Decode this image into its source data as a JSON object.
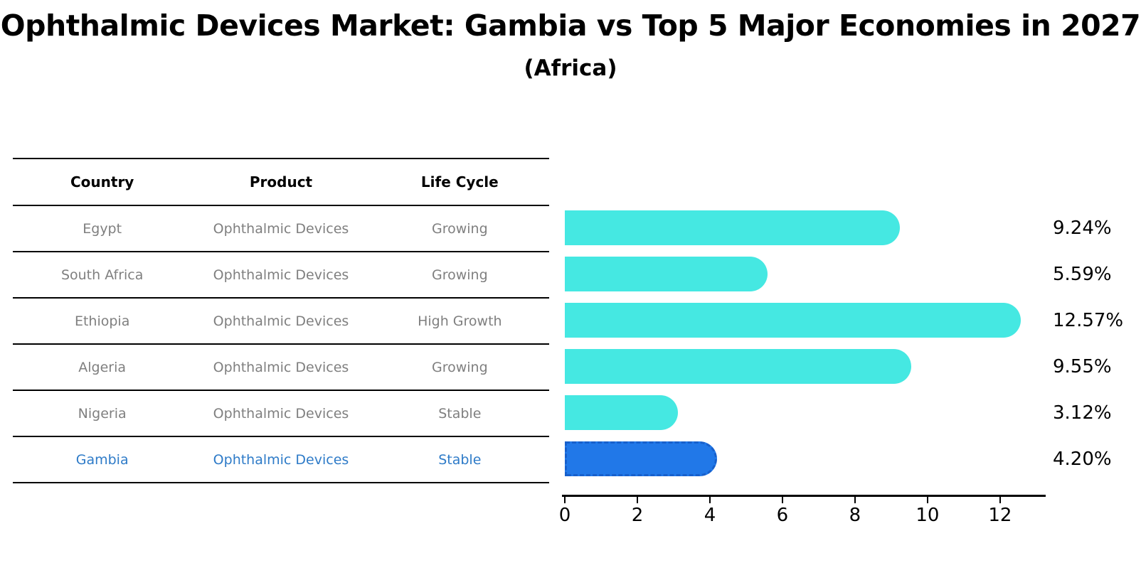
{
  "figure": {
    "title": "Ophthalmic Devices Market: Gambia vs Top 5 Major Economies in 2027",
    "subtitle": "(Africa)"
  },
  "table": {
    "headers": {
      "country": "Country",
      "product": "Product",
      "life_cycle": "Life Cycle"
    },
    "rows": [
      {
        "country": "Egypt",
        "product": "Ophthalmic Devices",
        "life_cycle": "Growing"
      },
      {
        "country": "South Africa",
        "product": "Ophthalmic Devices",
        "life_cycle": "Growing"
      },
      {
        "country": "Ethiopia",
        "product": "Ophthalmic Devices",
        "life_cycle": "High Growth"
      },
      {
        "country": "Algeria",
        "product": "Ophthalmic Devices",
        "life_cycle": "Growing"
      },
      {
        "country": "Nigeria",
        "product": "Ophthalmic Devices",
        "life_cycle": "Stable"
      },
      {
        "country": "Gambia",
        "product": "Ophthalmic Devices",
        "life_cycle": "Stable"
      }
    ]
  },
  "chart_data": {
    "type": "bar",
    "orientation": "horizontal",
    "title": "Ophthalmic Devices Market: Gambia vs Top 5 Major Economies in 2027 (Africa)",
    "categories": [
      "Egypt",
      "South Africa",
      "Ethiopia",
      "Algeria",
      "Nigeria",
      "Gambia"
    ],
    "values": [
      9.24,
      5.59,
      12.57,
      9.55,
      3.12,
      4.2
    ],
    "value_labels": [
      "9.24%",
      "5.59%",
      "12.57%",
      "9.55%",
      "3.12%",
      "4.20%"
    ],
    "xlabel": "",
    "ylabel": "",
    "xlim": [
      0,
      13.1
    ],
    "xticks": [
      0,
      2,
      4,
      6,
      8,
      10,
      12
    ],
    "grid": false,
    "legend": null,
    "highlight_index": 5,
    "colors": {
      "bar": "#45E8E2",
      "highlight_bar": "#2178E8",
      "highlight_bar_border": "#1760CC",
      "highlight_text": "#2E7BC8",
      "table_text": "#7F7F7F",
      "header_text": "#000000",
      "axis": "#000000"
    }
  }
}
